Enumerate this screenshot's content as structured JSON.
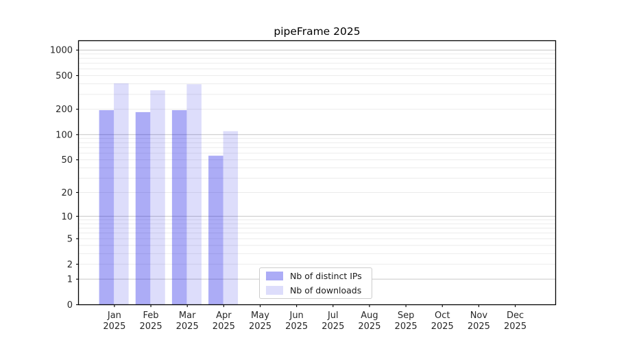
{
  "figure": {
    "title": "pipeFrame 2025",
    "background": "#ffffff"
  },
  "chart_data": {
    "type": "bar",
    "title": "pipeFrame 2025",
    "xlabel": "",
    "ylabel": "",
    "categories": [
      "Jan",
      "Feb",
      "Mar",
      "Apr",
      "May",
      "Jun",
      "Jul",
      "Aug",
      "Sep",
      "Oct",
      "Nov",
      "Dec"
    ],
    "category_year": "2025",
    "series": [
      {
        "name": "Nb of distinct IPs",
        "values": [
          195,
          185,
          195,
          56,
          0,
          0,
          0,
          0,
          0,
          0,
          0,
          0
        ],
        "fill": "rgba(25,25,230,0.36)",
        "approx_hex_on_white": "#a9a9f6"
      },
      {
        "name": "Nb of downloads",
        "values": [
          405,
          335,
          395,
          110,
          0,
          0,
          0,
          0,
          0,
          0,
          0,
          0
        ],
        "fill": "rgba(25,25,230,0.15)",
        "approx_hex_on_white": "#dcdcfa"
      }
    ],
    "y_scale": "log10(1+v)",
    "y_ticks": [
      0,
      1,
      2,
      5,
      10,
      20,
      50,
      100,
      200,
      500,
      1000
    ],
    "ylim": [
      0,
      1290
    ],
    "grid": "horizontal major+minor (log decades)",
    "major_grid_values": [
      1,
      10,
      100,
      1000
    ],
    "legend_position": "lower center inside plot",
    "colors": {
      "major_grid": "#c6c6c6",
      "minor_grid": "#ebebeb",
      "spine": "#000000",
      "tick_text": "#262626"
    }
  },
  "legend": {
    "items": [
      {
        "label": "Nb of distinct IPs"
      },
      {
        "label": "Nb of downloads"
      }
    ]
  }
}
